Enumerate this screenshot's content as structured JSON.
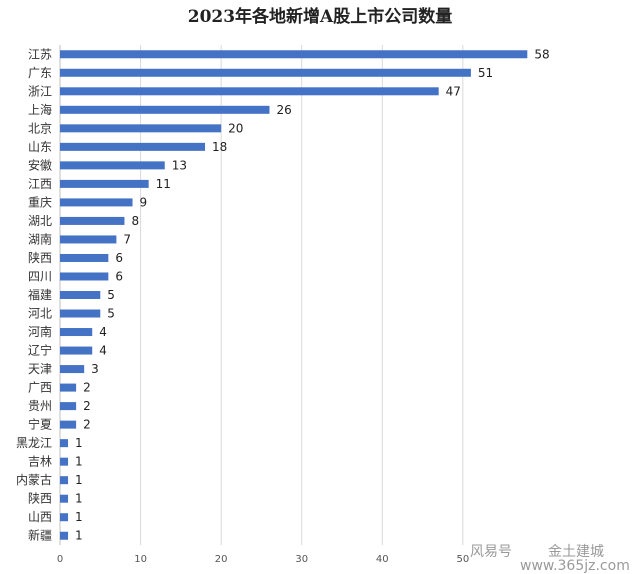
{
  "chart_data": {
    "type": "bar",
    "orientation": "horizontal",
    "title": "2023年各地新增A股上市公司数量",
    "categories": [
      "江苏",
      "广东",
      "浙江",
      "上海",
      "北京",
      "山东",
      "安徽",
      "江西",
      "重庆",
      "湖北",
      "湖南",
      "陕西",
      "四川",
      "福建",
      "河北",
      "河南",
      "辽宁",
      "天津",
      "广西",
      "贵州",
      "宁夏",
      "黑龙江",
      "吉林",
      "内蒙古",
      "陕西",
      "山西",
      "新疆"
    ],
    "values": [
      58,
      51,
      47,
      26,
      20,
      18,
      13,
      11,
      9,
      8,
      7,
      6,
      6,
      5,
      5,
      4,
      4,
      3,
      2,
      2,
      2,
      1,
      1,
      1,
      1,
      1,
      1
    ],
    "xlim": [
      0,
      70
    ],
    "xticks": [
      "0",
      "10",
      "20",
      "30",
      "40",
      "50"
    ],
    "grid": true,
    "legend": "none",
    "bar_color": "#4472c4"
  },
  "watermark": {
    "text1": "风易号",
    "text2": "www.365jz.com",
    "text3": "金土建城"
  }
}
